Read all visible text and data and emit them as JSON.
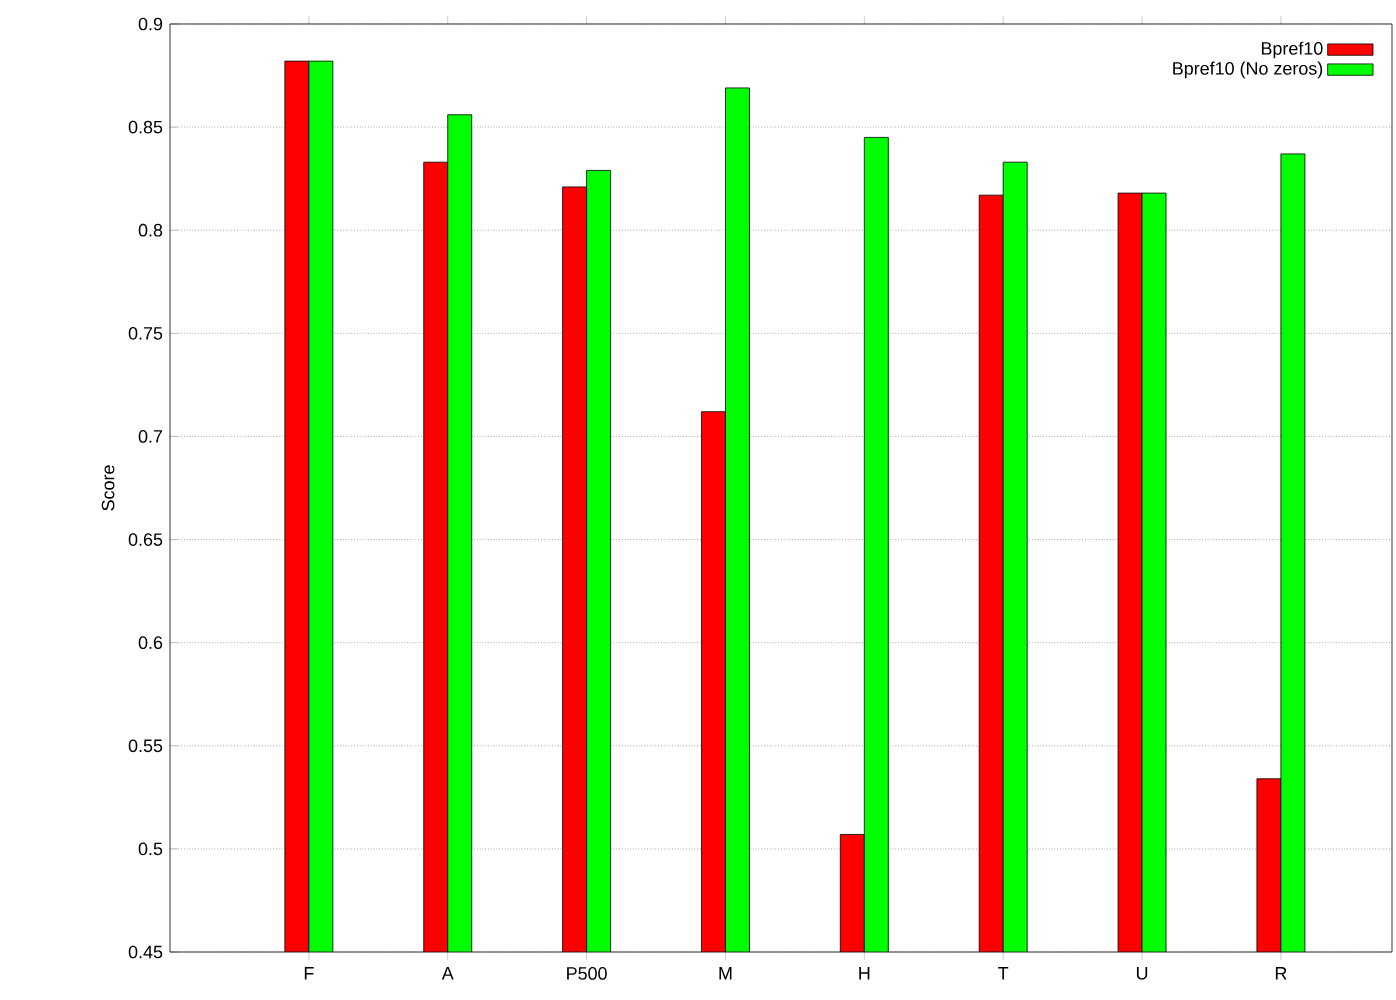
{
  "chart_data": {
    "type": "bar",
    "ylabel": "Score",
    "categories": [
      "F",
      "A",
      "P500",
      "M",
      "H",
      "T",
      "U",
      "R"
    ],
    "series": [
      {
        "name": "Bpref10",
        "color": "#ff0000",
        "values": [
          0.882,
          0.833,
          0.821,
          0.712,
          0.507,
          0.817,
          0.818,
          0.534
        ]
      },
      {
        "name": "Bpref10 (No zeros)",
        "color": "#00ff00",
        "values": [
          0.882,
          0.856,
          0.829,
          0.869,
          0.845,
          0.833,
          0.818,
          0.837
        ]
      }
    ],
    "ylim": [
      0.45,
      0.9
    ],
    "yticks": [
      0.45,
      0.5,
      0.55,
      0.6,
      0.65,
      0.7,
      0.75,
      0.8,
      0.85,
      0.9
    ],
    "grid": "y",
    "legend": "top right"
  }
}
